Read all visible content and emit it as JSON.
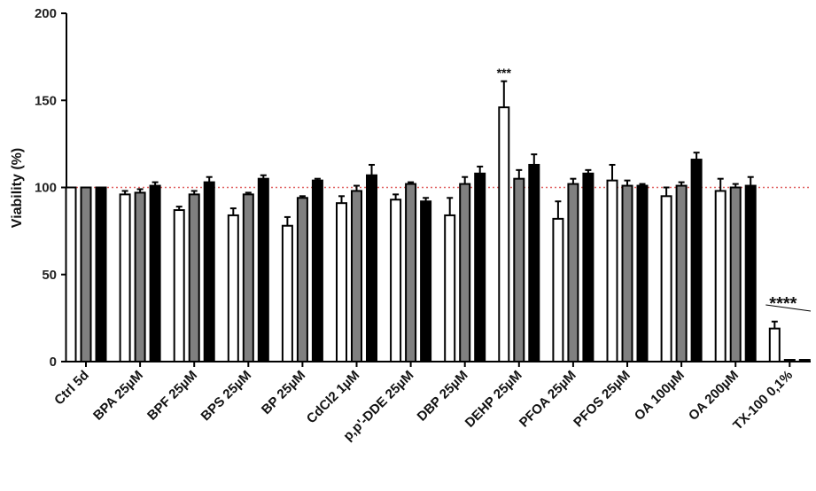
{
  "chart_data": {
    "type": "bar",
    "title": "",
    "xlabel": "",
    "ylabel": "Viability (%)",
    "ylim": [
      0,
      200
    ],
    "yticks": [
      "0",
      "50",
      "100",
      "150",
      "200"
    ],
    "reference_line": 100,
    "grid": false,
    "categories": [
      "Ctrl 5d",
      "BPA 25µM",
      "BPF 25µM",
      "BPS 25µM",
      "BP  25µM",
      "CdCl2 1µM",
      "p,p'-DDE 25µM",
      "DBP 25µM",
      "DEHP 25µM",
      "PFOA 25µM",
      "PFOS 25µM",
      "OA 100µM",
      "OA 200µM",
      "TX-100 0,1%"
    ],
    "series": [
      {
        "fill": "#ffffff",
        "values": [
          100,
          96,
          87,
          84,
          78,
          91,
          93,
          84,
          146,
          82,
          104,
          95,
          98,
          19
        ],
        "errors": [
          0,
          2,
          2,
          4,
          5,
          4,
          3,
          10,
          15,
          10,
          9,
          5,
          7,
          4
        ]
      },
      {
        "fill": "#808080",
        "values": [
          100,
          97,
          96,
          96,
          94,
          98,
          102,
          102,
          105,
          102,
          101,
          101,
          100,
          1
        ],
        "errors": [
          0,
          2,
          2,
          1,
          1,
          3,
          1,
          4,
          5,
          3,
          3,
          2,
          2,
          0
        ]
      },
      {
        "fill": "#000000",
        "values": [
          100,
          101,
          103,
          105,
          104,
          107,
          92,
          108,
          113,
          108,
          101,
          116,
          101,
          1
        ],
        "errors": [
          0,
          2,
          3,
          2,
          1,
          6,
          2,
          4,
          6,
          2,
          1,
          4,
          5,
          0
        ]
      }
    ],
    "annotations": [
      {
        "category_index": 8,
        "text": "***"
      },
      {
        "category_index": 13,
        "text": "****"
      }
    ]
  }
}
